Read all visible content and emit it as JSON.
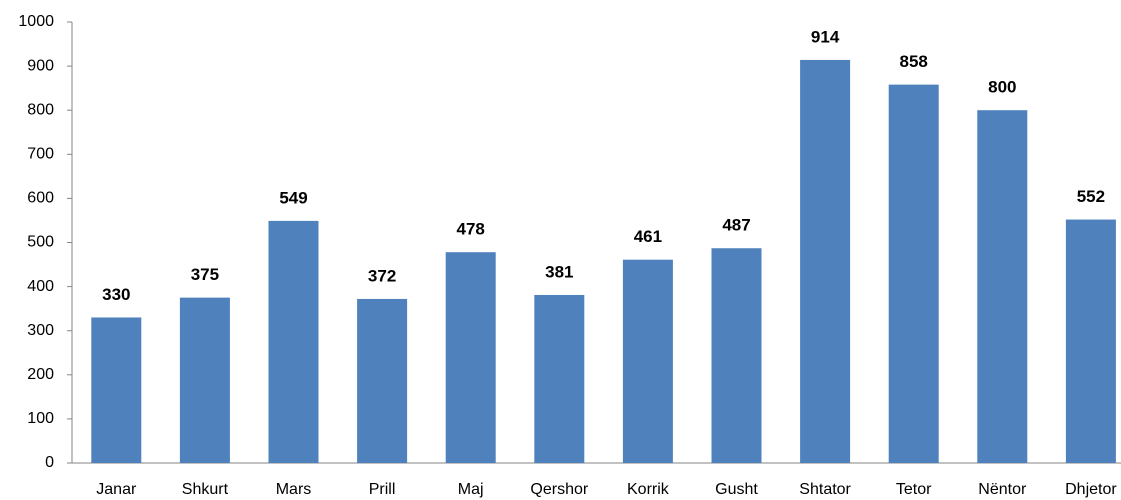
{
  "chart_data": {
    "type": "bar",
    "categories": [
      "Janar",
      "Shkurt",
      "Mars",
      "Prill",
      "Maj",
      "Qershor",
      "Korrik",
      "Gusht",
      "Shtator",
      "Tetor",
      "Nëntor",
      "Dhjetor"
    ],
    "values": [
      330,
      375,
      549,
      372,
      478,
      381,
      461,
      487,
      914,
      858,
      800,
      552
    ],
    "color": "#4f81bd",
    "ylim": [
      0,
      1000
    ],
    "yticks": [
      0,
      100,
      200,
      300,
      400,
      500,
      600,
      700,
      800,
      900,
      1000
    ],
    "grid": false
  }
}
